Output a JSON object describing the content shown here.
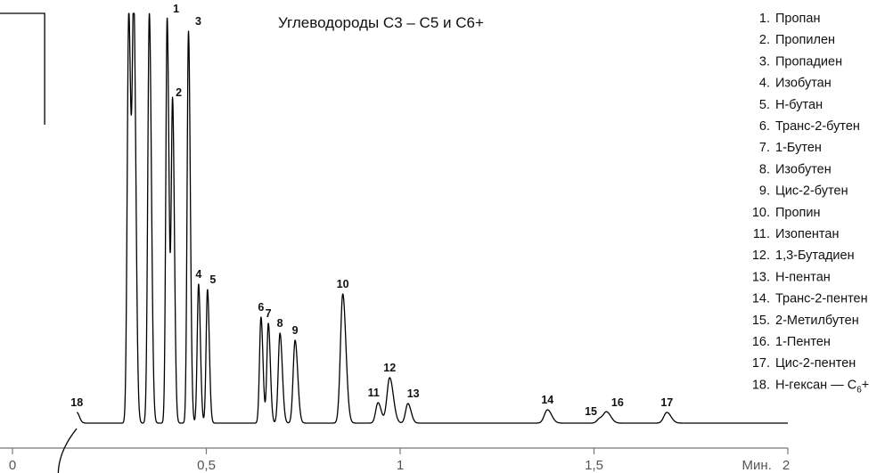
{
  "chart_data": {
    "type": "line",
    "title": "Углеводороды С3 – С5 и С6+",
    "xlabel": "Мин.",
    "ylabel": "",
    "xlim": [
      0,
      2
    ],
    "x_ticks": [
      {
        "value": 0,
        "label": "0"
      },
      {
        "value": 0.5,
        "label": "0,5"
      },
      {
        "value": 1,
        "label": "1"
      },
      {
        "value": 1.5,
        "label": "1,5"
      },
      {
        "value": 2,
        "label": "2"
      }
    ],
    "grid": false,
    "legend_position": "right",
    "baseline": 7,
    "peaks": [
      {
        "label": "18",
        "t": 0.166,
        "h": 12,
        "w": 0.005
      },
      {
        "label": "",
        "t": 0.3,
        "h": 460,
        "w": 0.004
      },
      {
        "label": "",
        "t": 0.313,
        "h": 460,
        "w": 0.004
      },
      {
        "label": "",
        "t": 0.353,
        "h": 460,
        "w": 0.004
      },
      {
        "label": "1",
        "t": 0.399,
        "h": 455,
        "w": 0.0035
      },
      {
        "label": "2",
        "t": 0.413,
        "h": 360,
        "w": 0.0035
      },
      {
        "label": "3",
        "t": 0.454,
        "h": 440,
        "w": 0.0035
      },
      {
        "label": "4",
        "t": 0.48,
        "h": 156,
        "w": 0.0035
      },
      {
        "label": "5",
        "t": 0.503,
        "h": 150,
        "w": 0.0035
      },
      {
        "label": "6",
        "t": 0.641,
        "h": 119,
        "w": 0.0038
      },
      {
        "label": "7",
        "t": 0.66,
        "h": 112,
        "w": 0.0038
      },
      {
        "label": "8",
        "t": 0.69,
        "h": 101,
        "w": 0.0045
      },
      {
        "label": "9",
        "t": 0.729,
        "h": 93,
        "w": 0.005
      },
      {
        "label": "10",
        "t": 0.852,
        "h": 145,
        "w": 0.006
      },
      {
        "label": "11",
        "t": 0.943,
        "h": 23,
        "w": 0.006
      },
      {
        "label": "12",
        "t": 0.973,
        "h": 51,
        "w": 0.007
      },
      {
        "label": "13",
        "t": 1.02,
        "h": 22,
        "w": 0.006
      },
      {
        "label": "14",
        "t": 1.38,
        "h": 15,
        "w": 0.008
      },
      {
        "label": "15",
        "t": 1.515,
        "h": 5,
        "w": 0.007
      },
      {
        "label": "16",
        "t": 1.533,
        "h": 12,
        "w": 0.008
      },
      {
        "label": "17",
        "t": 1.688,
        "h": 12,
        "w": 0.008
      }
    ],
    "legend": [
      {
        "n": "1.",
        "text": "Пропан"
      },
      {
        "n": "2.",
        "text": "Пропилен"
      },
      {
        "n": "3.",
        "text": "Пропадиен"
      },
      {
        "n": "4.",
        "text": "Изобутан"
      },
      {
        "n": "5.",
        "text": "Н-бутан"
      },
      {
        "n": "6.",
        "text": "Транс-2-бутен"
      },
      {
        "n": "7.",
        "text": "1-Бутен"
      },
      {
        "n": "8.",
        "text": "Изобутен"
      },
      {
        "n": "9.",
        "text": "Цис-2-бутен"
      },
      {
        "n": "10.",
        "text": "Пропин"
      },
      {
        "n": "11.",
        "text": "Изопентан"
      },
      {
        "n": "12.",
        "text": "1,3-Бутадиен"
      },
      {
        "n": "13.",
        "text": "Н-пентан"
      },
      {
        "n": "14.",
        "text": "Транс-2-пентен"
      },
      {
        "n": "15.",
        "text": "2-Метилбутен"
      },
      {
        "n": "16.",
        "text": "1-Пентен"
      },
      {
        "n": "17.",
        "text": "Цис-2-пентен"
      },
      {
        "n": "18.",
        "text": "Н-гексан — C",
        "sub": "6",
        "suffix": "+"
      }
    ],
    "colors": {
      "trace": "#000000",
      "axis": "#777777",
      "text": "#111111"
    }
  }
}
